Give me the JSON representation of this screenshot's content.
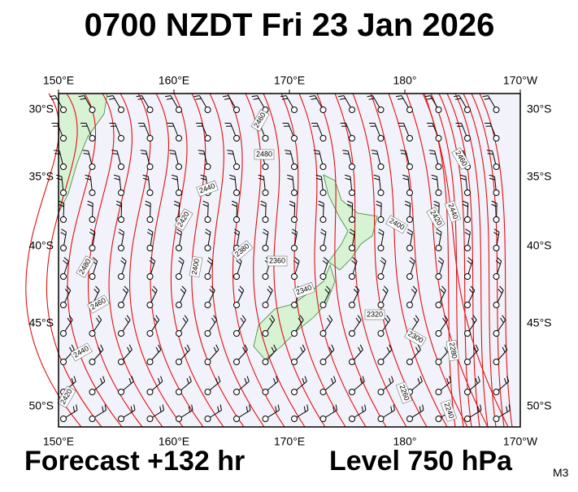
{
  "title": "0700 NZDT Fri 23 Jan 2026",
  "map": {
    "lon_labels": [
      "150°E",
      "160°E",
      "170°E",
      "180°",
      "170°W"
    ],
    "lat_labels": [
      "30°S",
      "35°S",
      "40°S",
      "45°S",
      "50°S"
    ],
    "contour_labels": [
      "2460",
      "2480",
      "2440",
      "2420",
      "2400",
      "2380",
      "2360",
      "2340",
      "2320",
      "2300",
      "2280",
      "2260",
      "2240",
      "2400",
      "2420",
      "2440",
      "2460",
      "2480",
      "2460",
      "2440",
      "2420"
    ]
  },
  "footer": {
    "forecast": "Forecast +132 hr",
    "level": "Level 750 hPa",
    "code": "M3"
  }
}
